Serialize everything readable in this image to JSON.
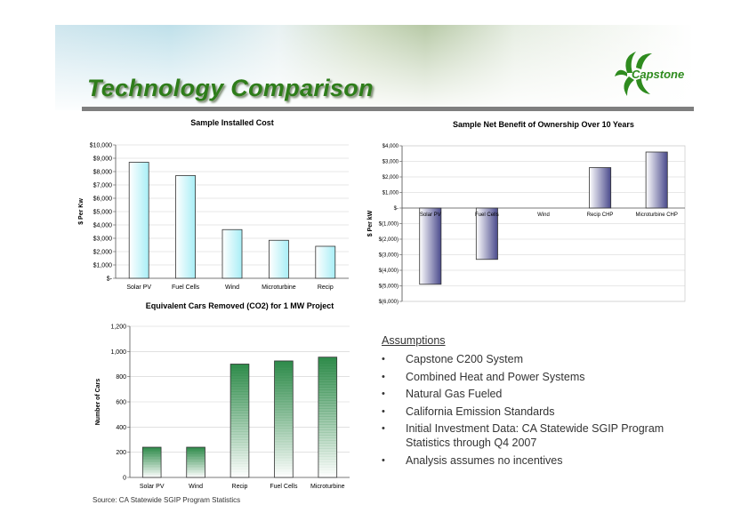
{
  "slide": {
    "title": "Technology Comparison",
    "logo_text": "Capstone",
    "source": "Source: CA Statewide SGIP Program Statistics"
  },
  "assumptions": {
    "heading": "Assumptions",
    "bullet": "•",
    "items": [
      "Capstone C200 System",
      "Combined Heat and Power Systems",
      "Natural Gas Fueled",
      "California Emission Standards",
      "Initial Investment Data: CA Statewide SGIP Program Statistics through Q4 2007",
      "Analysis assumes no incentives"
    ]
  },
  "colors": {
    "title_green": "#2e7d1a",
    "cyan_bar": "#a8eef6",
    "purple_bar": "#4a4a8c",
    "green_bar": "#2e8b4a"
  },
  "chart_data": [
    {
      "type": "bar",
      "title": "Sample Installed Cost",
      "ylabel": "$ Per Kw",
      "xlabel": "",
      "categories": [
        "Solar PV",
        "Fuel Cells",
        "Wind",
        "Microturbine",
        "Recip"
      ],
      "values": [
        8700,
        7700,
        3650,
        2850,
        2400
      ],
      "ylim": [
        0,
        10000
      ],
      "tick_values": [
        0,
        1000,
        2000,
        3000,
        4000,
        5000,
        6000,
        7000,
        8000,
        9000,
        10000
      ],
      "tick_labels": [
        "$-",
        "$1,000",
        "$2,000",
        "$3,000",
        "$4,000",
        "$5,000",
        "$6,000",
        "$7,000",
        "$8,000",
        "$9,000",
        "$10,000"
      ],
      "grid": true,
      "legend": "none"
    },
    {
      "type": "bar",
      "title": "Sample Net Benefit of Ownership Over 10 Years",
      "ylabel": "$ Per kW",
      "xlabel": "",
      "categories": [
        "Solar PV",
        "Fuel Cells",
        "Wind",
        "Recip CHP",
        "Microturbine CHP"
      ],
      "values": [
        -4900,
        -3300,
        0,
        2600,
        3600
      ],
      "ylim": [
        -6000,
        4000
      ],
      "tick_values": [
        -6000,
        -5000,
        -4000,
        -3000,
        -2000,
        -1000,
        0,
        1000,
        2000,
        3000,
        4000
      ],
      "tick_labels": [
        "$(6,000)",
        "$(5,000)",
        "$(4,000)",
        "$(3,000)",
        "$(2,000)",
        "$(1,000)",
        "$-",
        "$1,000",
        "$2,000",
        "$3,000",
        "$4,000"
      ],
      "grid": true,
      "legend": "none"
    },
    {
      "type": "bar",
      "title": "Equivalent Cars Removed (CO2) for 1 MW Project",
      "ylabel": "Number of Cars",
      "xlabel": "",
      "categories": [
        "Solar PV",
        "Wind",
        "Recip",
        "Fuel Cells",
        "Microturbine"
      ],
      "values": [
        240,
        240,
        900,
        925,
        955
      ],
      "ylim": [
        0,
        1200
      ],
      "tick_values": [
        0,
        200,
        400,
        600,
        800,
        1000,
        1200
      ],
      "tick_labels": [
        "0",
        "200",
        "400",
        "600",
        "800",
        "1,000",
        "1,200"
      ],
      "grid": true,
      "legend": "none"
    }
  ]
}
